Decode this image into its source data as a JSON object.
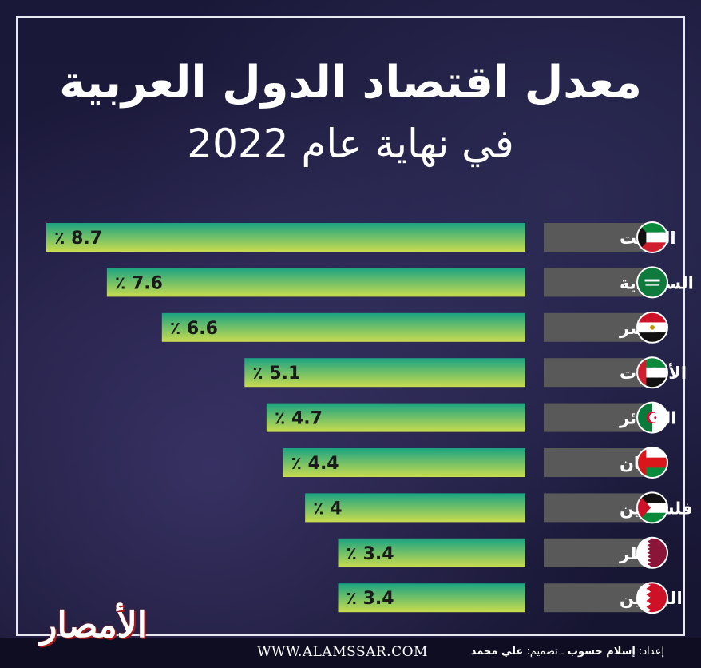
{
  "title_line1": "معدل اقتصاد الدول العربية",
  "title_line2": "في نهاية عام 2022",
  "footer": {
    "website": "WWW.ALAMSSAR.COM",
    "prep_label": "إعداد:",
    "prep_name": "إسلام حسوب",
    "separator": " ـ ",
    "design_label": "تصميم:",
    "design_name": "علي محمد"
  },
  "logo_text": "الأمصار",
  "colors": {
    "bar_top": "#1aa382",
    "bar_bottom": "#c9dc4e",
    "label_box": "#595959",
    "background": "#14132e"
  },
  "chart_data": {
    "type": "bar",
    "orientation": "horizontal",
    "value_suffix": " ٪",
    "categories": [
      "الكويت",
      "السعودية",
      "مصر",
      "الأمارات",
      "الجزائر",
      "عمان",
      "فلسطين",
      "قطر",
      "البحرين"
    ],
    "values": [
      8.7,
      7.6,
      6.6,
      5.1,
      4.7,
      4.4,
      4,
      3.4,
      3.4
    ],
    "value_labels": [
      "8.7",
      "7.6",
      "6.6",
      "5.1",
      "4.7",
      "4.4",
      "4",
      "3.4",
      "3.4"
    ],
    "flags": [
      "kuwait",
      "saudi",
      "egypt",
      "uae",
      "algeria",
      "oman",
      "palestine",
      "qatar",
      "bahrain"
    ],
    "xlim": [
      0,
      8.7
    ],
    "grid": false,
    "legend": "none"
  }
}
